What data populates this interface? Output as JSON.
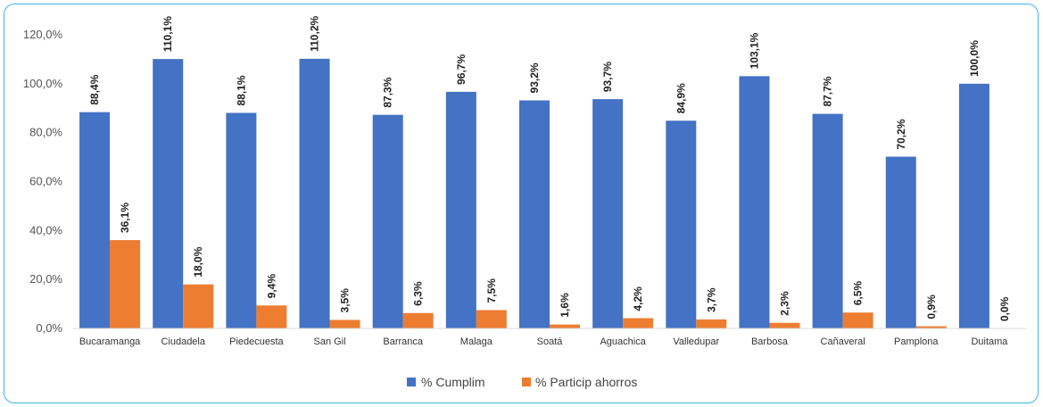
{
  "chart_data": {
    "type": "bar",
    "title": "",
    "xlabel": "",
    "ylabel": "",
    "ylim": [
      0,
      120
    ],
    "yticks": [
      "0,0%",
      "20,0%",
      "40,0%",
      "60,0%",
      "80,0%",
      "100,0%",
      "120,0%"
    ],
    "grid": false,
    "legend_position": "bottom",
    "categories": [
      "Bucaramanga",
      "Ciudadela",
      "Piedecuesta",
      "San Gil",
      "Barranca",
      "Malaga",
      "Soatá",
      "Aguachica",
      "Valledupar",
      "Barbosa",
      "Cañaveral",
      "Pamplona",
      "Duitama"
    ],
    "series": [
      {
        "name": "% Cumplim",
        "color": "#4472c4",
        "values": [
          88.4,
          110.1,
          88.1,
          110.2,
          87.3,
          96.7,
          93.2,
          93.7,
          84.9,
          103.1,
          87.7,
          70.2,
          100.0
        ],
        "labels": [
          "88,4%",
          "110,1%",
          "88,1%",
          "110,2%",
          "87,3%",
          "96,7%",
          "93,2%",
          "93,7%",
          "84,9%",
          "103,1%",
          "87,7%",
          "70,2%",
          "100,0%"
        ]
      },
      {
        "name": "% Particip ahorros",
        "color": "#ed7d31",
        "values": [
          36.1,
          18.0,
          9.4,
          3.5,
          6.3,
          7.5,
          1.6,
          4.2,
          3.7,
          2.3,
          6.5,
          0.9,
          0.0
        ],
        "labels": [
          "36,1%",
          "18,0%",
          "9,4%",
          "3,5%",
          "6,3%",
          "7,5%",
          "1,6%",
          "4,2%",
          "3,7%",
          "2,3%",
          "6,5%",
          "0,9%",
          "0,0%"
        ]
      }
    ]
  }
}
